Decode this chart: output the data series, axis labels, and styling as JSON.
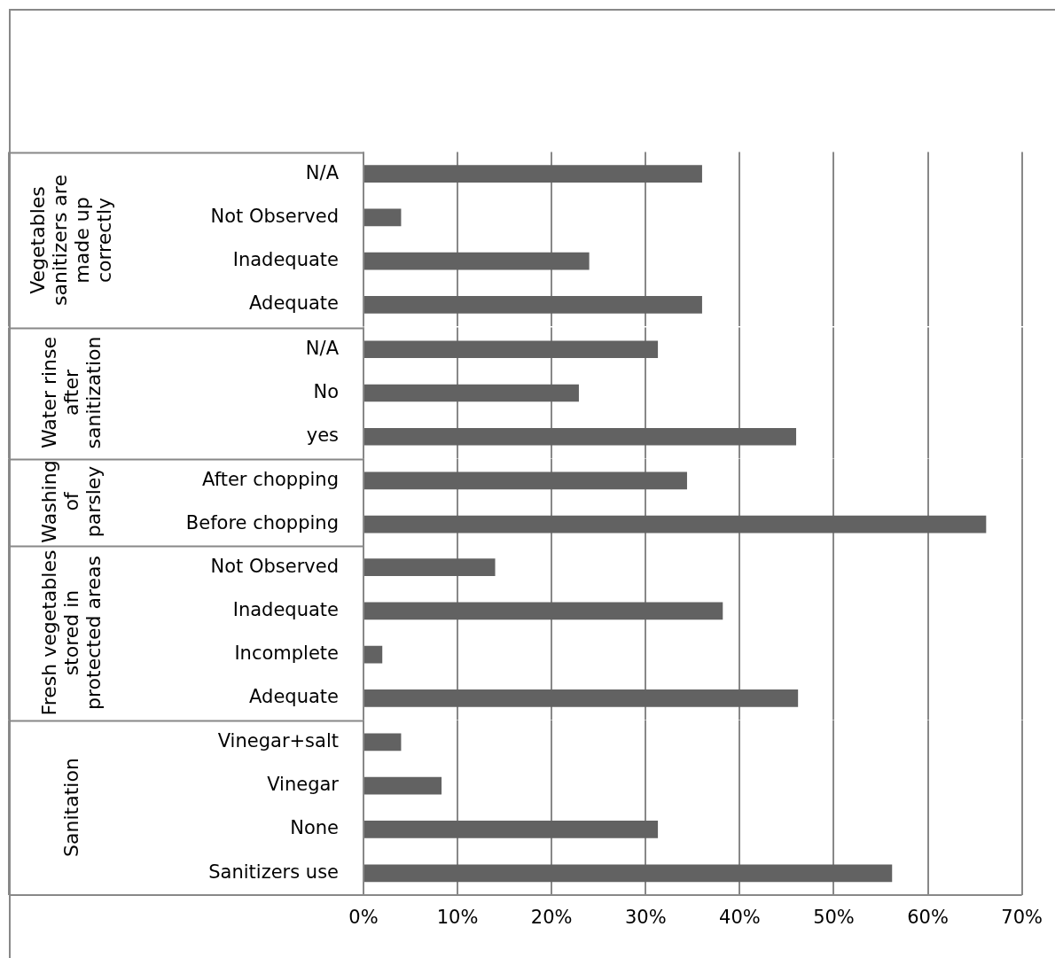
{
  "chart_data": [
    {
      "type": "bar",
      "orientation": "horizontal",
      "ylabel": "Vegetables sanitizers are made up correctly",
      "categories": [
        "N/A",
        "Not Observed",
        "Inadequate",
        "Adequate"
      ],
      "values": [
        36,
        4,
        24,
        36
      ],
      "color": "#626262",
      "xlim": [
        0,
        70
      ],
      "xticks": [
        {
          "value": 0,
          "label": null
        },
        {
          "value": 10,
          "label": null
        },
        {
          "value": 20,
          "label": null
        },
        {
          "value": 30,
          "label": null
        },
        {
          "value": 40,
          "label": null
        },
        {
          "value": 50,
          "label": null
        },
        {
          "value": 60,
          "label": null
        },
        {
          "value": 70,
          "label": null
        }
      ],
      "grid": "x",
      "tick_labels": "y"
    },
    {
      "type": "bar",
      "orientation": "horizontal",
      "ylabel": "Water rinse after sanitization",
      "categories": [
        "N/A",
        "No",
        "yes"
      ],
      "values": [
        31.3,
        22.9,
        46
      ],
      "color": "#626262",
      "xlim": [
        0,
        70
      ],
      "xticks": [
        {
          "value": 0,
          "label": null
        },
        {
          "value": 10,
          "label": null
        },
        {
          "value": 20,
          "label": null
        },
        {
          "value": 30,
          "label": null
        },
        {
          "value": 40,
          "label": null
        },
        {
          "value": 50,
          "label": null
        },
        {
          "value": 60,
          "label": null
        },
        {
          "value": 70,
          "label": null
        }
      ],
      "grid": "x",
      "tick_labels": "y"
    },
    {
      "type": "bar",
      "orientation": "horizontal",
      "ylabel": "Washing of parsley",
      "categories": [
        "After chopping",
        "Before chopping"
      ],
      "values": [
        34.4,
        66.2
      ],
      "color": "#626262",
      "xlim": [
        0,
        70
      ],
      "xticks": [
        {
          "value": 0,
          "label": null
        },
        {
          "value": 10,
          "label": null
        },
        {
          "value": 20,
          "label": null
        },
        {
          "value": 30,
          "label": null
        },
        {
          "value": 40,
          "label": null
        },
        {
          "value": 50,
          "label": null
        },
        {
          "value": 60,
          "label": null
        },
        {
          "value": 70,
          "label": null
        }
      ],
      "grid": "x",
      "tick_labels": "y"
    },
    {
      "type": "bar",
      "orientation": "horizontal",
      "ylabel": "Fresh vegetables stored in protected areas",
      "categories": [
        "Not Observed",
        "Inadequate",
        "Incomplete",
        "Adequate"
      ],
      "values": [
        14,
        38.2,
        2,
        46.2
      ],
      "color": "#626262",
      "xlim": [
        0,
        70
      ],
      "xticks": [
        {
          "value": 0,
          "label": null
        },
        {
          "value": 10,
          "label": null
        },
        {
          "value": 20,
          "label": null
        },
        {
          "value": 30,
          "label": null
        },
        {
          "value": 40,
          "label": null
        },
        {
          "value": 50,
          "label": null
        },
        {
          "value": 60,
          "label": null
        },
        {
          "value": 70,
          "label": null
        }
      ],
      "grid": "x",
      "tick_labels": "y"
    },
    {
      "type": "bar",
      "orientation": "horizontal",
      "ylabel": "Sanitation",
      "categories": [
        "Vinegar+salt",
        "Vinegar",
        "None",
        "Sanitizers use"
      ],
      "values": [
        4,
        8.3,
        31.3,
        56.2
      ],
      "color": "#626262",
      "xlim": [
        0,
        70
      ],
      "xticks": [
        {
          "value": 0,
          "label": "0%"
        },
        {
          "value": 10,
          "label": "10%"
        },
        {
          "value": 20,
          "label": "20%"
        },
        {
          "value": 30,
          "label": "30%"
        },
        {
          "value": 40,
          "label": "40%"
        },
        {
          "value": 50,
          "label": "50%"
        },
        {
          "value": 60,
          "label": "60%"
        },
        {
          "value": 70,
          "label": "70%"
        }
      ],
      "grid": "x"
    }
  ]
}
